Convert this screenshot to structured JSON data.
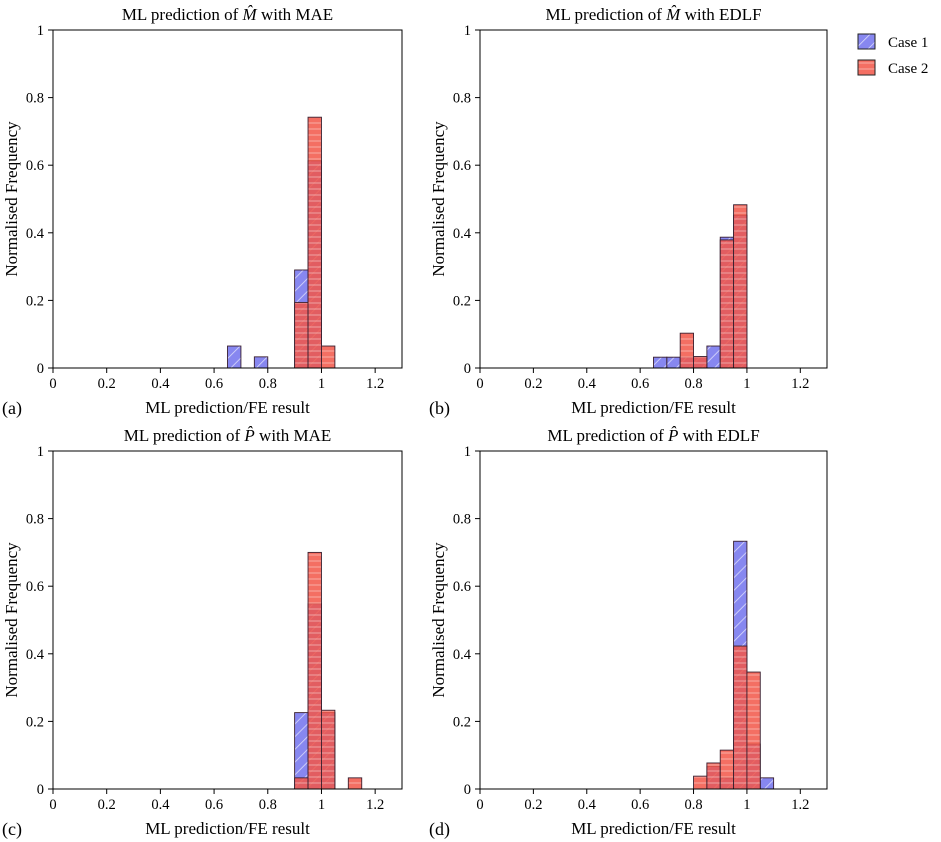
{
  "legend": [
    {
      "label": "Case 1",
      "color": "#6b6bee"
    },
    {
      "label": "Case 2",
      "color": "#f0564a"
    }
  ],
  "chart_data": [
    {
      "type": "bar",
      "panel": "(a)",
      "title_pre": "ML prediction of ",
      "title_sym": "M",
      "title_post": " with MAE",
      "xlabel": "ML prediction/FE result",
      "ylabel": "Normalised Frequency",
      "xlim": [
        0,
        1.3
      ],
      "ylim": [
        0,
        1
      ],
      "xticks": [
        0,
        0.2,
        0.4,
        0.6,
        0.8,
        1,
        1.2
      ],
      "yticks": [
        0,
        0.2,
        0.4,
        0.6,
        0.8,
        1
      ],
      "bin_width": 0.05,
      "series": [
        {
          "name": "Case 1",
          "bins": [
            [
              0.675,
              0.065
            ],
            [
              0.775,
              0.033
            ],
            [
              0.925,
              0.29
            ],
            [
              0.975,
              0.613
            ]
          ]
        },
        {
          "name": "Case 2",
          "bins": [
            [
              0.925,
              0.194
            ],
            [
              0.975,
              0.742
            ],
            [
              1.025,
              0.065
            ]
          ]
        }
      ]
    },
    {
      "type": "bar",
      "panel": "(b)",
      "title_pre": "ML prediction of ",
      "title_sym": "M",
      "title_post": " with EDLF",
      "xlabel": "ML prediction/FE result",
      "ylabel": "Normalised Frequency",
      "xlim": [
        0,
        1.3
      ],
      "ylim": [
        0,
        1
      ],
      "xticks": [
        0,
        0.2,
        0.4,
        0.6,
        0.8,
        1,
        1.2
      ],
      "yticks": [
        0,
        0.2,
        0.4,
        0.6,
        0.8,
        1
      ],
      "bin_width": 0.05,
      "series": [
        {
          "name": "Case 1",
          "bins": [
            [
              0.675,
              0.032
            ],
            [
              0.725,
              0.032
            ],
            [
              0.775,
              0.032
            ],
            [
              0.825,
              0.032
            ],
            [
              0.875,
              0.065
            ],
            [
              0.925,
              0.387
            ],
            [
              0.975,
              0.452
            ]
          ]
        },
        {
          "name": "Case 2",
          "bins": [
            [
              0.775,
              0.103
            ],
            [
              0.825,
              0.034
            ],
            [
              0.925,
              0.379
            ],
            [
              0.975,
              0.483
            ]
          ]
        }
      ]
    },
    {
      "type": "bar",
      "panel": "(c)",
      "title_pre": "ML prediction of ",
      "title_sym": "P",
      "title_post": " with MAE",
      "xlabel": "ML prediction/FE result",
      "ylabel": "Normalised Frequency",
      "xlim": [
        0,
        1.3
      ],
      "ylim": [
        0,
        1
      ],
      "xticks": [
        0,
        0.2,
        0.4,
        0.6,
        0.8,
        1,
        1.2
      ],
      "yticks": [
        0,
        0.2,
        0.4,
        0.6,
        0.8,
        1
      ],
      "bin_width": 0.05,
      "series": [
        {
          "name": "Case 1",
          "bins": [
            [
              0.925,
              0.226
            ],
            [
              0.975,
              0.548
            ],
            [
              1.025,
              0.226
            ]
          ]
        },
        {
          "name": "Case 2",
          "bins": [
            [
              0.925,
              0.033
            ],
            [
              0.975,
              0.7
            ],
            [
              1.025,
              0.233
            ],
            [
              1.125,
              0.033
            ]
          ]
        }
      ]
    },
    {
      "type": "bar",
      "panel": "(d)",
      "title_pre": "ML prediction of ",
      "title_sym": "P",
      "title_post": " with EDLF",
      "xlabel": "ML prediction/FE result",
      "ylabel": "Normalised Frequency",
      "xlim": [
        0,
        1.3
      ],
      "ylim": [
        0,
        1
      ],
      "xticks": [
        0,
        0.2,
        0.4,
        0.6,
        0.8,
        1,
        1.2
      ],
      "yticks": [
        0,
        0.2,
        0.4,
        0.6,
        0.8,
        1
      ],
      "bin_width": 0.05,
      "series": [
        {
          "name": "Case 1",
          "bins": [
            [
              0.875,
              0.067
            ],
            [
              0.925,
              0.033
            ],
            [
              0.975,
              0.733
            ],
            [
              1.025,
              0.133
            ],
            [
              1.075,
              0.033
            ]
          ]
        },
        {
          "name": "Case 2",
          "bins": [
            [
              0.825,
              0.038
            ],
            [
              0.875,
              0.077
            ],
            [
              0.925,
              0.115
            ],
            [
              0.975,
              0.423
            ],
            [
              1.025,
              0.346
            ]
          ]
        }
      ]
    }
  ]
}
